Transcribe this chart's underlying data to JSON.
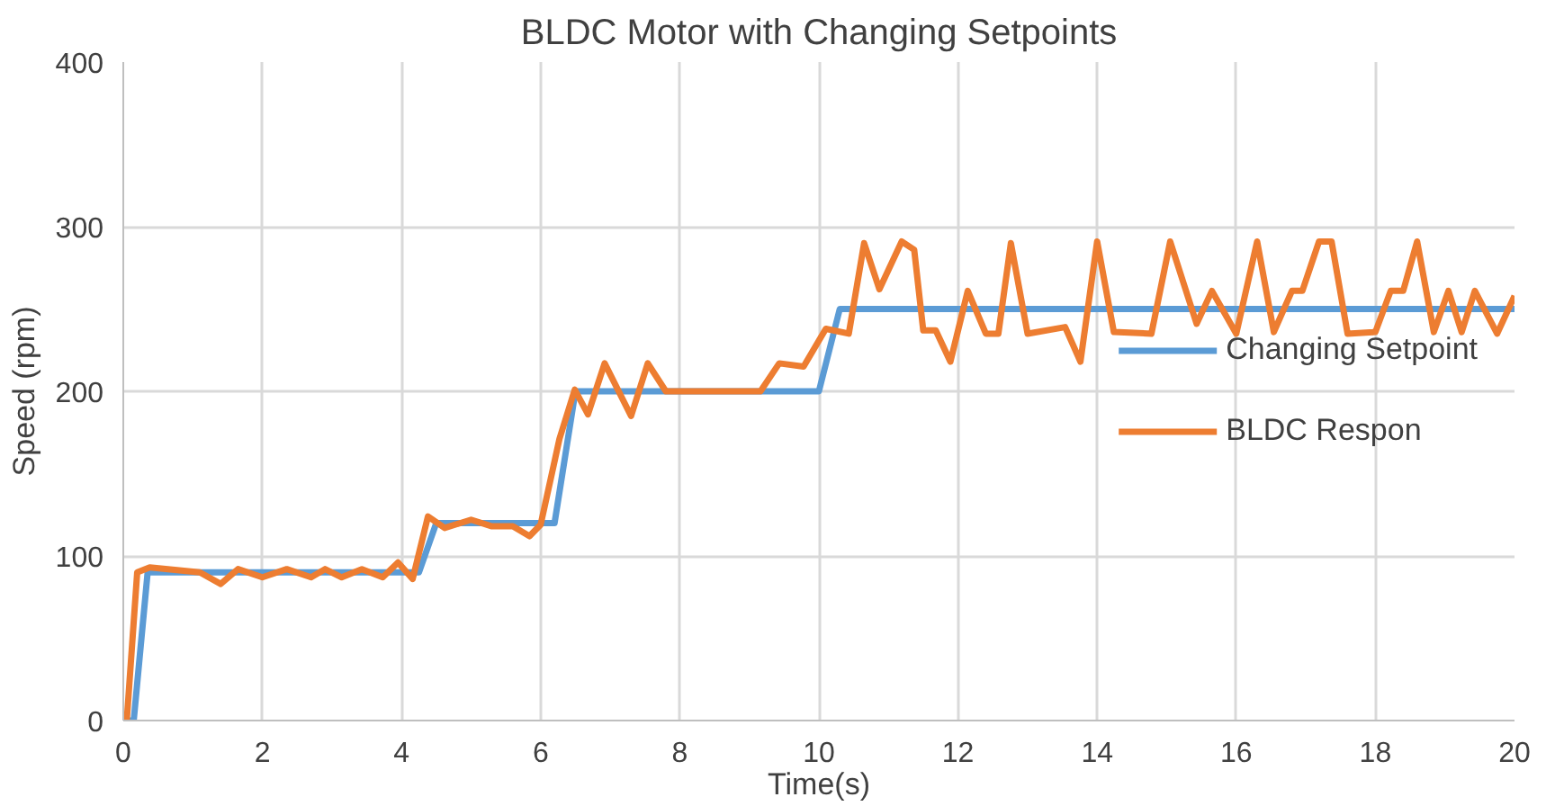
{
  "chart_data": {
    "type": "line",
    "title": "BLDC Motor with Changing Setpoints",
    "xlabel": "Time(s)",
    "ylabel": "Speed (rpm)",
    "xlim": [
      0,
      20
    ],
    "ylim": [
      0,
      400
    ],
    "xticks": [
      0,
      2,
      4,
      6,
      8,
      10,
      12,
      14,
      16,
      18,
      20
    ],
    "yticks": [
      0,
      100,
      200,
      300,
      400
    ],
    "grid": true,
    "legend": "right",
    "line_style": "solid",
    "marker": "none",
    "series": [
      {
        "name": "Changing Setpoint",
        "color": "#5b9bd5",
        "x": [
          0,
          0.15,
          0.35,
          4.25,
          4.5,
          6.2,
          6.5,
          10.0,
          10.3,
          20
        ],
        "values": [
          0,
          0,
          90,
          90,
          120,
          120,
          200,
          200,
          250,
          250
        ]
      },
      {
        "name": "BLDC Respon",
        "color": "#ed7d31",
        "x": [
          0.05,
          0.2,
          0.38,
          1.1,
          1.4,
          1.65,
          2.0,
          2.35,
          2.7,
          2.9,
          3.14,
          3.43,
          3.73,
          3.95,
          4.16,
          4.38,
          4.62,
          5.0,
          5.3,
          5.6,
          5.84,
          6.0,
          6.27,
          6.49,
          6.68,
          6.92,
          7.3,
          7.54,
          7.8,
          9.16,
          9.43,
          9.78,
          10.1,
          10.43,
          10.65,
          10.87,
          11.19,
          11.37,
          11.5,
          11.68,
          11.89,
          12.14,
          12.4,
          12.58,
          12.76,
          13.0,
          13.54,
          13.76,
          14.0,
          14.24,
          14.78,
          15.05,
          15.43,
          15.65,
          16.0,
          16.3,
          16.54,
          16.8,
          16.95,
          17.19,
          17.37,
          17.6,
          18.0,
          18.22,
          18.4,
          18.6,
          18.84,
          19.05,
          19.24,
          19.43,
          19.75,
          20
        ],
        "values": [
          0,
          90,
          93,
          90,
          83,
          92,
          87,
          92,
          87,
          92,
          87,
          92,
          87,
          96,
          86,
          124,
          117,
          122,
          118,
          118,
          112,
          119,
          171,
          201,
          186,
          217,
          185,
          217,
          200,
          200,
          217,
          215,
          238,
          235,
          290,
          262,
          291,
          286,
          237,
          237,
          218,
          261,
          235,
          235,
          290,
          235,
          239,
          218,
          291,
          236,
          235,
          291,
          241,
          261,
          235,
          291,
          236,
          261,
          261,
          291,
          291,
          235,
          236,
          261,
          261,
          291,
          236,
          261,
          236,
          261,
          235,
          258
        ]
      }
    ]
  }
}
